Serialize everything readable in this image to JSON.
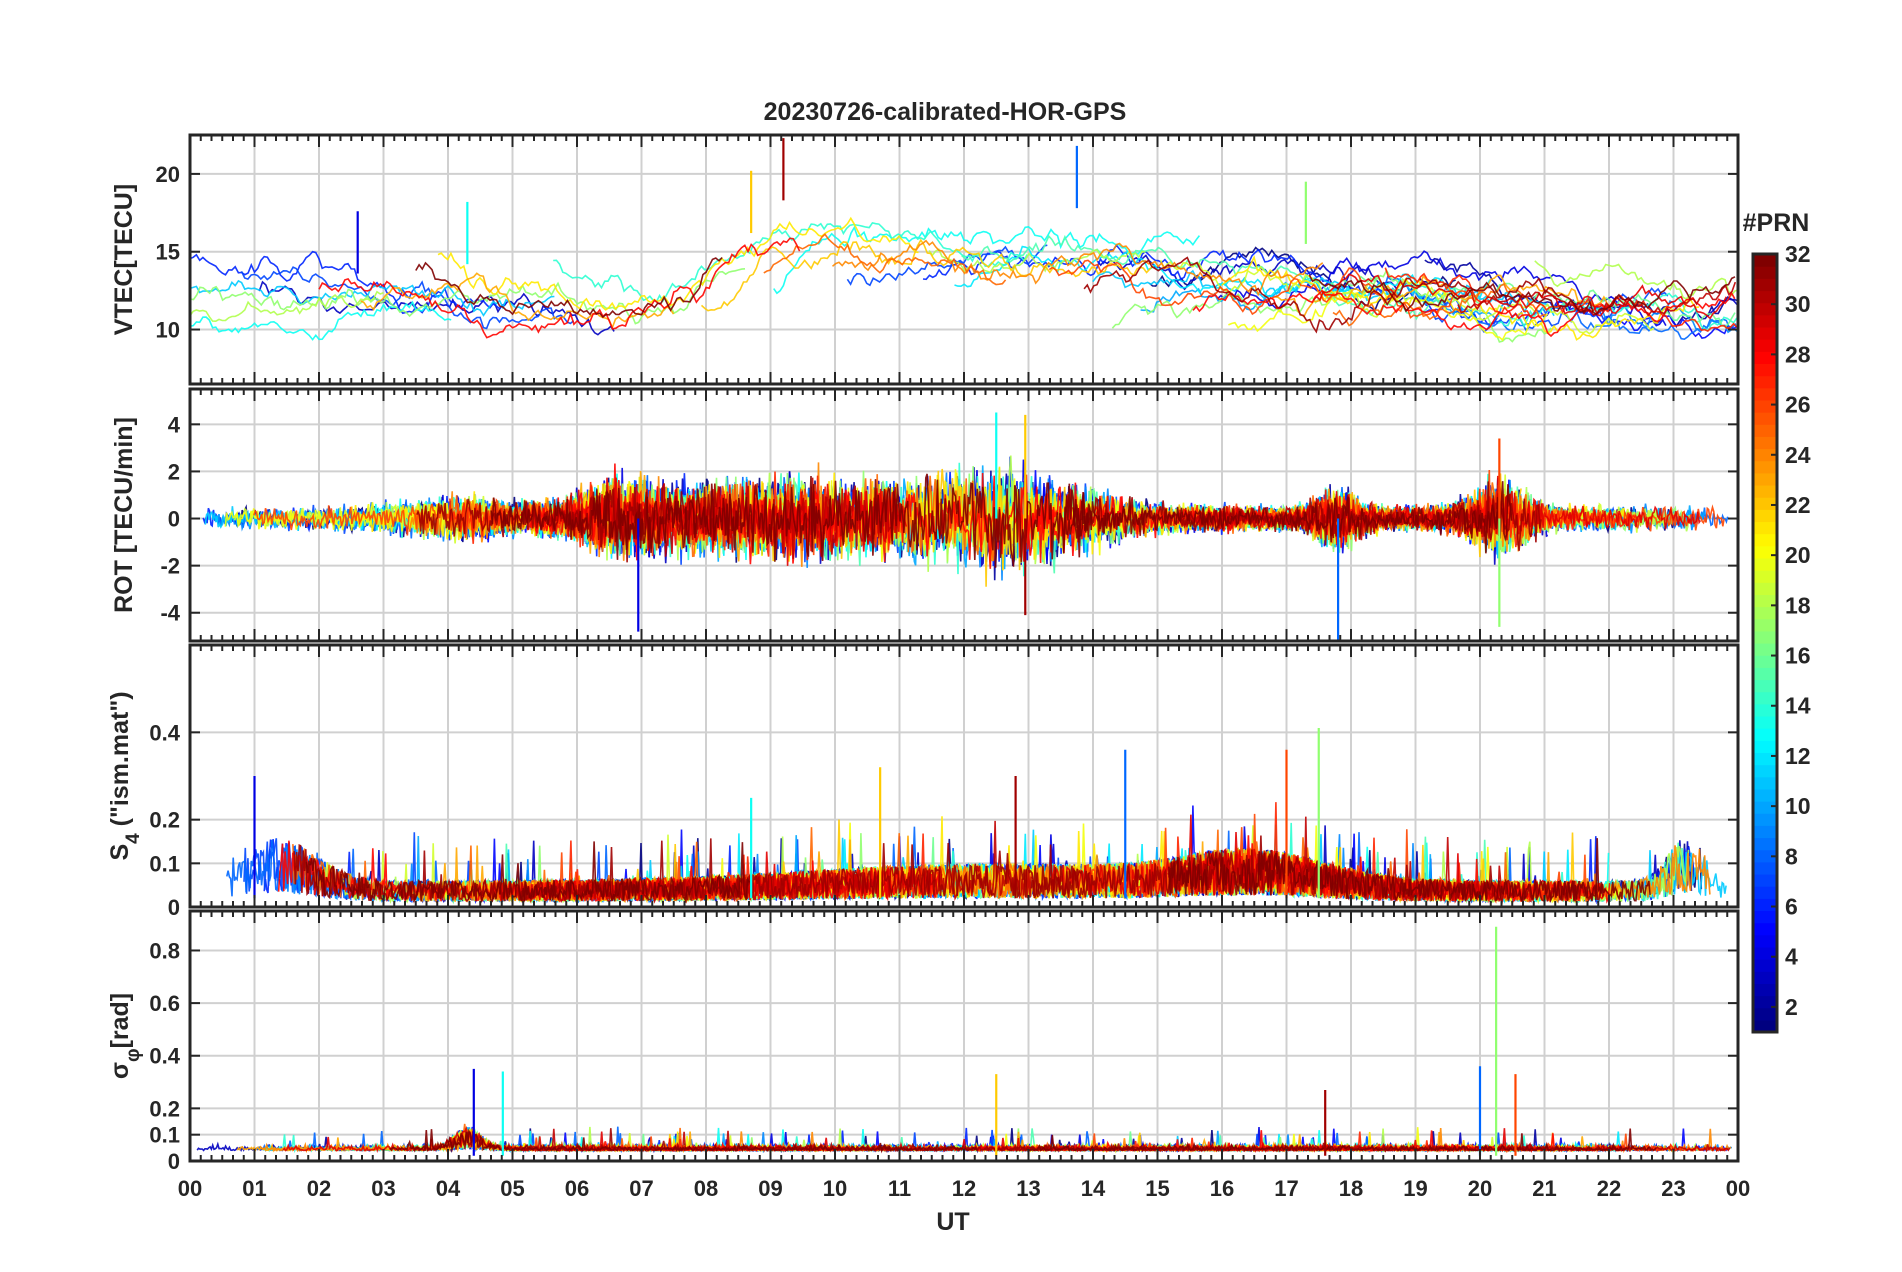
{
  "chart_data": {
    "type": "line",
    "title": "20230726-calibrated-HOR-GPS",
    "xlabel": "UT",
    "xlim": [
      0,
      24
    ],
    "x_tick_labels": [
      "00",
      "01",
      "02",
      "03",
      "04",
      "05",
      "06",
      "07",
      "08",
      "09",
      "10",
      "11",
      "12",
      "13",
      "14",
      "15",
      "16",
      "17",
      "18",
      "19",
      "20",
      "21",
      "22",
      "23",
      "00"
    ],
    "colorbar": {
      "label": "#PRN",
      "range": [
        1,
        32
      ],
      "ticks": [
        2,
        4,
        6,
        8,
        10,
        12,
        14,
        16,
        18,
        20,
        22,
        24,
        26,
        28,
        30,
        32
      ],
      "tick_labels": [
        "2",
        "4",
        "6",
        "8",
        "10",
        "12",
        "14",
        "16",
        "18",
        "20",
        "22",
        "24",
        "26",
        "28",
        "30",
        "32"
      ],
      "colormap": "jet"
    },
    "panels": [
      {
        "id": "vtec",
        "ylabel": "VTEC[TECU]",
        "ylim": [
          6.5,
          22.5
        ],
        "yticks": [
          10,
          15,
          20
        ],
        "ytick_labels": [
          "10",
          "15",
          "20"
        ],
        "features": [
          {
            "t": 2.6,
            "v": 17.6
          },
          {
            "t": 4.3,
            "v": 18.2
          },
          {
            "t": 8.7,
            "v": 20.2
          },
          {
            "t": 9.2,
            "v": 22.3
          },
          {
            "t": 13.75,
            "v": 21.8
          },
          {
            "t": 17.3,
            "v": 19.5
          }
        ]
      },
      {
        "id": "rot",
        "ylabel": "ROT [TECU/min]",
        "ylim": [
          -5.2,
          5.5
        ],
        "yticks": [
          -4,
          -2,
          0,
          2,
          4
        ],
        "ytick_labels": [
          "-4",
          "-2",
          "0",
          "2",
          "4"
        ],
        "features": [
          {
            "t": 6.95,
            "v": -4.8
          },
          {
            "t": 12.5,
            "v": 4.5
          },
          {
            "t": 12.95,
            "v": 4.4
          },
          {
            "t": 12.95,
            "v": -4.1
          },
          {
            "t": 17.8,
            "v": -5.2
          },
          {
            "t": 20.3,
            "v": -4.6
          },
          {
            "t": 20.3,
            "v": 3.4
          }
        ]
      },
      {
        "id": "s4",
        "ylabel_main": "S",
        "ylabel_sub": "4",
        "ylabel_rest": " (\"ism.mat\")",
        "ylim": [
          0,
          0.6
        ],
        "yticks": [
          0,
          0.1,
          0.2,
          0.4
        ],
        "ytick_labels": [
          "0",
          "0.1",
          "0.2",
          "0.4"
        ],
        "features": [
          {
            "t": 1.0,
            "v": 0.3
          },
          {
            "t": 8.7,
            "v": 0.25
          },
          {
            "t": 10.7,
            "v": 0.32
          },
          {
            "t": 12.8,
            "v": 0.3
          },
          {
            "t": 14.5,
            "v": 0.36
          },
          {
            "t": 17.5,
            "v": 0.41
          },
          {
            "t": 17.0,
            "v": 0.36
          }
        ]
      },
      {
        "id": "sigma_phi",
        "ylabel_main": "σ",
        "ylabel_sub": "φ",
        "ylabel_rest": "[rad]",
        "ylim": [
          0,
          0.95
        ],
        "yticks": [
          0,
          0.1,
          0.2,
          0.4,
          0.6,
          0.8
        ],
        "ytick_labels": [
          "0",
          "0.1",
          "0.2",
          "0.4",
          "0.6",
          "0.8"
        ],
        "features": [
          {
            "t": 4.4,
            "v": 0.35
          },
          {
            "t": 4.85,
            "v": 0.34
          },
          {
            "t": 12.5,
            "v": 0.33
          },
          {
            "t": 17.6,
            "v": 0.27
          },
          {
            "t": 20.0,
            "v": 0.36
          },
          {
            "t": 20.25,
            "v": 0.89
          },
          {
            "t": 20.55,
            "v": 0.33
          }
        ]
      }
    ]
  }
}
